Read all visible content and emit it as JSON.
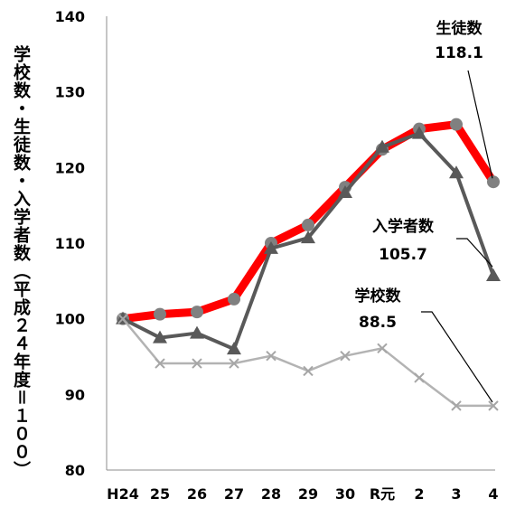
{
  "chart_data": {
    "type": "line",
    "categories": [
      "H24",
      "25",
      "26",
      "27",
      "28",
      "29",
      "30",
      "R元",
      "2",
      "3",
      "4"
    ],
    "ylabel": "学校数・生徒数・入学者数（平成２４年度＝１００）",
    "ylim": [
      80,
      140
    ],
    "yticks": [
      80,
      90,
      100,
      110,
      120,
      130,
      140
    ],
    "grid": false,
    "series": [
      {
        "name": "生徒数",
        "values": [
          100,
          100.6,
          100.9,
          102.6,
          110,
          112.4,
          117.4,
          122.4,
          125.1,
          125.7,
          118.1
        ],
        "color": "#ff0000",
        "marker_color": "#808080",
        "marker": "circle",
        "label_value": "118.1"
      },
      {
        "name": "入学者数",
        "values": [
          100,
          97.5,
          98.1,
          96,
          109.3,
          110.7,
          116.7,
          122.7,
          124.5,
          119.3,
          105.7
        ],
        "color": "#595959",
        "marker_color": "#595959",
        "marker": "triangle",
        "label_value": "105.7"
      },
      {
        "name": "学校数",
        "values": [
          100,
          94.1,
          94.1,
          94.1,
          95.1,
          93.1,
          95.1,
          96.1,
          92.2,
          88.5,
          88.5
        ],
        "color": "#b3b3b3",
        "marker_color": "#a6a6a6",
        "marker": "x",
        "label_value": "88.5"
      }
    ]
  }
}
